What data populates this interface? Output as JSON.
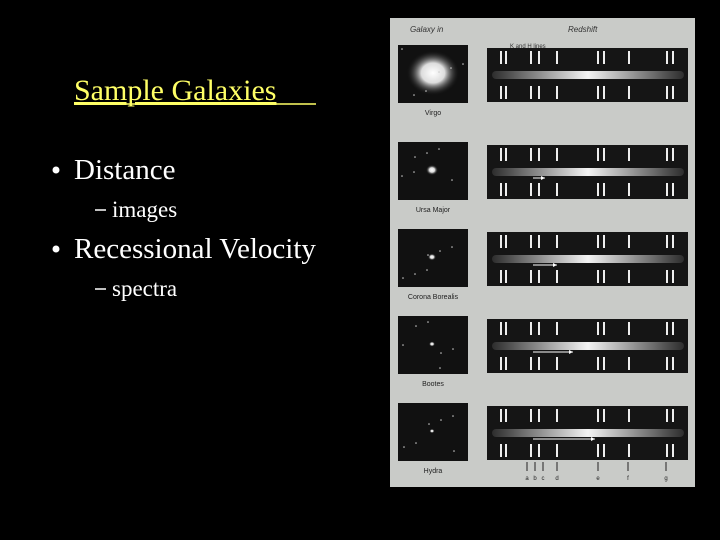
{
  "slide": {
    "title": "Sample Galaxies",
    "bullets": [
      {
        "text": "Distance",
        "sub": "images"
      },
      {
        "text": "Recessional Velocity",
        "sub": "spectra"
      }
    ]
  },
  "figure": {
    "header_left": "Galaxy in",
    "header_right": "Redshift",
    "line_label": "K and H lines",
    "galaxies": [
      "Virgo",
      "Ursa Major",
      "Corona Borealis",
      "Bootes",
      "Hydra"
    ],
    "line_letters": [
      "a",
      "b",
      "c",
      "d",
      "e",
      "f",
      "g"
    ]
  }
}
